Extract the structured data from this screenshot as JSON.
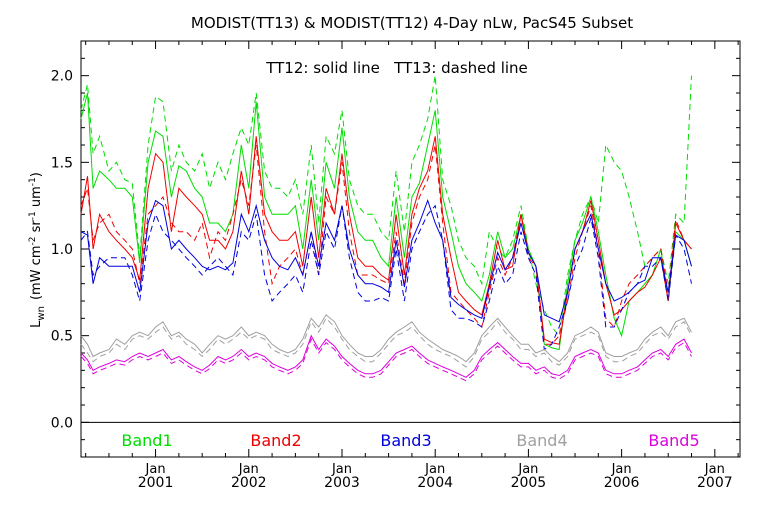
{
  "chart_data": {
    "type": "line",
    "title": "MODIST(TT13) & MODIST(TT12) 4-Day nLw, PacS45 Subset",
    "annotation": "TT12: solid line   TT13: dashed line",
    "ylabel": "L_wn (mW cm^-2 sr^-1 um^-1)",
    "ylabel_main": "L",
    "ylabel_sub": "wn",
    "ylabel_units": "(mW cm",
    "ylabel_units_exp1": "-2",
    "ylabel_units_mid": " sr",
    "ylabel_units_exp2": "-1",
    "ylabel_units_end": " um",
    "ylabel_units_exp3": "-1",
    "ylabel_units_close": ")",
    "xlabel": "",
    "xlim": [
      2000.2,
      2007.27
    ],
    "ylim": [
      -0.2,
      2.2
    ],
    "yticks": [
      0.0,
      0.5,
      1.0,
      1.5,
      2.0
    ],
    "ytick_labels": [
      "0.0",
      "0.5",
      "1.0",
      "1.5",
      "2.0"
    ],
    "xticks": [
      2001,
      2002,
      2003,
      2004,
      2005,
      2006,
      2007
    ],
    "xtick_month_label": "Jan",
    "xtick_year_labels": [
      "2001",
      "2002",
      "2003",
      "2004",
      "2005",
      "2006",
      "2007"
    ],
    "zero_line": 0.0,
    "grid": false,
    "line_styles": {
      "solid": "TT12",
      "dashed": "TT13"
    },
    "legend_position": "bottom",
    "series": [
      {
        "name": "Band1",
        "color": "#00dd00",
        "x": [
          2000.2,
          2000.27,
          2000.33,
          2000.4,
          2000.5,
          2000.58,
          2000.67,
          2000.75,
          2000.83,
          2000.92,
          2001.0,
          2001.08,
          2001.17,
          2001.25,
          2001.33,
          2001.42,
          2001.5,
          2001.58,
          2001.67,
          2001.75,
          2001.83,
          2001.92,
          2002.0,
          2002.08,
          2002.17,
          2002.25,
          2002.33,
          2002.42,
          2002.5,
          2002.58,
          2002.67,
          2002.75,
          2002.83,
          2002.92,
          2003.0,
          2003.08,
          2003.17,
          2003.25,
          2003.33,
          2003.42,
          2003.5,
          2003.58,
          2003.67,
          2003.75,
          2003.83,
          2003.92,
          2004.0,
          2004.08,
          2004.17,
          2004.25,
          2004.33,
          2004.42,
          2004.5,
          2004.58,
          2004.67,
          2004.75,
          2004.83,
          2004.92,
          2005.0,
          2005.08,
          2005.17,
          2005.25,
          2005.33,
          2005.42,
          2005.5,
          2005.58,
          2005.67,
          2005.75,
          2005.83,
          2005.92,
          2006.0,
          2006.08,
          2006.17,
          2006.25,
          2006.33,
          2006.42,
          2006.5,
          2006.58,
          2006.67,
          2006.75,
          2006.83,
          2006.92,
          2007.0,
          2007.08,
          2007.17,
          2007.27
        ],
        "tt12": [
          1.75,
          1.9,
          1.35,
          1.45,
          1.4,
          1.35,
          1.35,
          1.3,
          0.92,
          1.5,
          1.68,
          1.65,
          1.3,
          1.48,
          1.45,
          1.35,
          1.3,
          1.15,
          1.15,
          1.1,
          1.2,
          1.6,
          1.35,
          1.85,
          1.3,
          1.2,
          1.2,
          1.2,
          1.25,
          1.0,
          1.4,
          1.05,
          1.5,
          1.35,
          1.7,
          1.3,
          1.1,
          1.05,
          1.05,
          0.95,
          0.9,
          1.3,
          0.95,
          1.3,
          1.38,
          1.6,
          1.8,
          1.3,
          1.1,
          0.9,
          0.8,
          0.75,
          0.7,
          0.85,
          1.1,
          0.95,
          1.0,
          1.2,
          1.0,
          0.9,
          0.45,
          0.43,
          0.42,
          0.8,
          1.05,
          1.15,
          1.3,
          1.1,
          0.85,
          0.6,
          0.5,
          0.7,
          0.75,
          0.8,
          0.85,
          1.0,
          0.7,
          1.1,
          1.05,
          0.9
        ],
        "tt13": [
          1.8,
          1.95,
          1.55,
          1.65,
          1.45,
          1.5,
          1.4,
          1.38,
          0.95,
          1.6,
          1.88,
          1.85,
          1.45,
          1.6,
          1.5,
          1.45,
          1.55,
          1.35,
          1.5,
          1.4,
          1.55,
          1.7,
          1.6,
          1.9,
          1.45,
          1.35,
          1.35,
          1.3,
          1.4,
          1.2,
          1.6,
          1.15,
          1.65,
          1.55,
          1.8,
          1.4,
          1.25,
          1.2,
          1.2,
          1.1,
          1.05,
          1.45,
          1.1,
          1.5,
          1.6,
          1.75,
          2.0,
          1.4,
          1.25,
          1.05,
          0.95,
          0.9,
          0.8,
          1.1,
          1.0,
          0.95,
          1.05,
          1.25,
          1.0,
          0.8,
          0.65,
          0.55,
          0.5,
          0.85,
          1.05,
          1.2,
          1.3,
          1.15,
          1.6,
          1.5,
          1.45,
          1.3,
          1.1,
          0.9,
          0.95,
          1.0,
          0.8,
          1.2,
          1.15,
          2.0
        ]
      },
      {
        "name": "Band2",
        "color": "#ee0000",
        "tt12": [
          1.2,
          1.42,
          1.0,
          1.2,
          1.1,
          1.05,
          1.0,
          0.95,
          0.82,
          1.35,
          1.55,
          1.5,
          1.1,
          1.35,
          1.3,
          1.25,
          1.2,
          1.05,
          1.05,
          1.0,
          1.1,
          1.45,
          1.2,
          1.65,
          1.2,
          1.1,
          1.05,
          1.05,
          1.1,
          0.9,
          1.3,
          0.95,
          1.35,
          1.2,
          1.55,
          1.2,
          0.95,
          0.9,
          0.9,
          0.85,
          0.82,
          1.2,
          0.85,
          1.2,
          1.35,
          1.45,
          1.65,
          1.2,
          0.95,
          0.75,
          0.7,
          0.65,
          0.62,
          0.8,
          1.05,
          0.88,
          0.9,
          1.2,
          0.98,
          0.9,
          0.48,
          0.46,
          0.45,
          0.75,
          1.0,
          1.1,
          1.28,
          1.05,
          0.8,
          0.62,
          0.65,
          0.7,
          0.75,
          0.78,
          0.85,
          0.95,
          0.7,
          1.15,
          1.05,
          1.0
        ],
        "tt13": [
          1.25,
          1.35,
          1.05,
          1.15,
          1.2,
          1.1,
          1.05,
          1.0,
          0.8,
          1.2,
          1.25,
          1.3,
          1.15,
          1.1,
          1.1,
          1.05,
          1.15,
          0.95,
          1.1,
          1.05,
          1.2,
          1.4,
          1.25,
          1.6,
          1.1,
          0.8,
          0.9,
          0.95,
          1.0,
          0.85,
          1.1,
          0.85,
          1.3,
          1.2,
          1.5,
          1.1,
          0.85,
          0.85,
          0.85,
          0.82,
          0.8,
          1.1,
          0.8,
          1.15,
          1.3,
          1.4,
          1.6,
          1.15,
          0.75,
          0.7,
          0.65,
          0.6,
          0.55,
          0.75,
          0.95,
          0.85,
          0.95,
          1.2,
          0.95,
          0.9,
          0.45,
          0.45,
          0.5,
          0.7,
          0.95,
          1.1,
          1.25,
          1.0,
          0.6,
          0.55,
          0.7,
          0.8,
          0.85,
          0.9,
          0.95,
          1.0,
          0.75,
          1.17,
          1.05,
          1.0
        ]
      },
      {
        "name": "Band3",
        "color": "#0000dd",
        "tt12": [
          1.1,
          1.08,
          0.8,
          0.95,
          0.9,
          0.9,
          0.9,
          0.9,
          0.75,
          1.15,
          1.28,
          1.25,
          1.0,
          1.05,
          1.0,
          0.95,
          0.9,
          0.88,
          0.9,
          0.88,
          0.92,
          1.2,
          1.1,
          1.25,
          1.05,
          0.95,
          0.9,
          0.88,
          0.95,
          0.85,
          1.1,
          0.9,
          1.15,
          1.05,
          1.25,
          1.0,
          0.85,
          0.8,
          0.8,
          0.78,
          0.75,
          1.05,
          0.78,
          1.05,
          1.15,
          1.28,
          1.15,
          1.05,
          0.72,
          0.68,
          0.65,
          0.62,
          0.6,
          0.78,
          0.98,
          0.88,
          0.95,
          1.15,
          0.98,
          0.9,
          0.62,
          0.6,
          0.58,
          0.75,
          1.0,
          1.1,
          1.2,
          1.0,
          0.8,
          0.7,
          0.72,
          0.75,
          0.8,
          0.82,
          0.95,
          0.95,
          0.75,
          1.08,
          1.05,
          0.9
        ],
        "tt13": [
          1.05,
          1.1,
          0.85,
          0.9,
          0.95,
          0.95,
          0.95,
          0.85,
          0.7,
          1.05,
          1.2,
          1.1,
          1.05,
          1.0,
          0.95,
          0.9,
          0.85,
          0.9,
          0.95,
          0.9,
          0.85,
          1.1,
          1.05,
          1.2,
          0.85,
          0.7,
          0.75,
          0.8,
          0.85,
          0.75,
          1.05,
          0.85,
          1.1,
          1.0,
          1.25,
          0.95,
          0.75,
          0.7,
          0.7,
          0.72,
          0.7,
          1.0,
          0.7,
          1.0,
          1.1,
          1.2,
          1.25,
          1.05,
          0.65,
          0.6,
          0.6,
          0.58,
          0.55,
          0.7,
          0.9,
          0.8,
          0.85,
          1.1,
          0.95,
          0.85,
          0.42,
          0.45,
          0.55,
          0.7,
          0.9,
          1.0,
          1.18,
          0.95,
          0.55,
          0.55,
          0.65,
          0.75,
          0.8,
          0.9,
          0.9,
          0.95,
          0.7,
          1.08,
          1.0,
          0.8
        ]
      },
      {
        "name": "Band4",
        "color": "#a0a0a0",
        "tt12": [
          0.5,
          0.45,
          0.38,
          0.4,
          0.42,
          0.48,
          0.45,
          0.5,
          0.52,
          0.5,
          0.55,
          0.58,
          0.5,
          0.52,
          0.48,
          0.45,
          0.4,
          0.45,
          0.5,
          0.48,
          0.5,
          0.55,
          0.5,
          0.52,
          0.5,
          0.45,
          0.42,
          0.4,
          0.42,
          0.48,
          0.6,
          0.55,
          0.62,
          0.58,
          0.5,
          0.45,
          0.4,
          0.38,
          0.38,
          0.42,
          0.48,
          0.52,
          0.55,
          0.58,
          0.52,
          0.48,
          0.45,
          0.42,
          0.4,
          0.38,
          0.35,
          0.4,
          0.5,
          0.55,
          0.6,
          0.55,
          0.5,
          0.45,
          0.45,
          0.4,
          0.42,
          0.38,
          0.35,
          0.4,
          0.5,
          0.52,
          0.55,
          0.52,
          0.4,
          0.38,
          0.38,
          0.4,
          0.42,
          0.48,
          0.52,
          0.55,
          0.5,
          0.58,
          0.6,
          0.52
        ],
        "tt13": [
          0.45,
          0.4,
          0.35,
          0.38,
          0.4,
          0.45,
          0.42,
          0.48,
          0.5,
          0.48,
          0.52,
          0.55,
          0.48,
          0.5,
          0.45,
          0.42,
          0.38,
          0.42,
          0.48,
          0.45,
          0.48,
          0.52,
          0.48,
          0.5,
          0.48,
          0.42,
          0.4,
          0.38,
          0.4,
          0.45,
          0.58,
          0.52,
          0.6,
          0.55,
          0.48,
          0.42,
          0.38,
          0.35,
          0.35,
          0.4,
          0.45,
          0.5,
          0.52,
          0.55,
          0.5,
          0.45,
          0.42,
          0.4,
          0.38,
          0.35,
          0.32,
          0.38,
          0.48,
          0.52,
          0.58,
          0.52,
          0.48,
          0.42,
          0.42,
          0.38,
          0.4,
          0.35,
          0.33,
          0.38,
          0.48,
          0.5,
          0.52,
          0.5,
          0.38,
          0.35,
          0.35,
          0.38,
          0.4,
          0.45,
          0.5,
          0.52,
          0.48,
          0.55,
          0.58,
          0.5
        ]
      },
      {
        "name": "Band5",
        "color": "#dd00dd",
        "tt12": [
          0.4,
          0.36,
          0.3,
          0.32,
          0.34,
          0.36,
          0.35,
          0.38,
          0.4,
          0.38,
          0.4,
          0.42,
          0.36,
          0.38,
          0.35,
          0.32,
          0.3,
          0.33,
          0.38,
          0.36,
          0.38,
          0.42,
          0.38,
          0.4,
          0.38,
          0.34,
          0.32,
          0.3,
          0.32,
          0.36,
          0.5,
          0.42,
          0.48,
          0.44,
          0.38,
          0.34,
          0.3,
          0.28,
          0.28,
          0.3,
          0.35,
          0.4,
          0.42,
          0.44,
          0.4,
          0.36,
          0.34,
          0.32,
          0.3,
          0.28,
          0.26,
          0.3,
          0.38,
          0.42,
          0.46,
          0.42,
          0.38,
          0.34,
          0.34,
          0.3,
          0.32,
          0.28,
          0.27,
          0.3,
          0.38,
          0.4,
          0.42,
          0.4,
          0.3,
          0.28,
          0.28,
          0.3,
          0.32,
          0.36,
          0.4,
          0.42,
          0.38,
          0.45,
          0.48,
          0.4
        ],
        "tt13": [
          0.38,
          0.34,
          0.28,
          0.3,
          0.32,
          0.34,
          0.33,
          0.36,
          0.38,
          0.36,
          0.38,
          0.4,
          0.34,
          0.36,
          0.33,
          0.3,
          0.28,
          0.31,
          0.36,
          0.34,
          0.36,
          0.4,
          0.36,
          0.38,
          0.36,
          0.32,
          0.3,
          0.28,
          0.3,
          0.34,
          0.48,
          0.4,
          0.46,
          0.42,
          0.36,
          0.32,
          0.28,
          0.26,
          0.26,
          0.28,
          0.33,
          0.38,
          0.4,
          0.42,
          0.38,
          0.34,
          0.32,
          0.3,
          0.28,
          0.26,
          0.24,
          0.28,
          0.36,
          0.4,
          0.44,
          0.4,
          0.36,
          0.32,
          0.32,
          0.28,
          0.3,
          0.26,
          0.25,
          0.28,
          0.36,
          0.38,
          0.4,
          0.38,
          0.28,
          0.26,
          0.26,
          0.28,
          0.3,
          0.34,
          0.38,
          0.4,
          0.36,
          0.43,
          0.46,
          0.38
        ]
      }
    ]
  }
}
